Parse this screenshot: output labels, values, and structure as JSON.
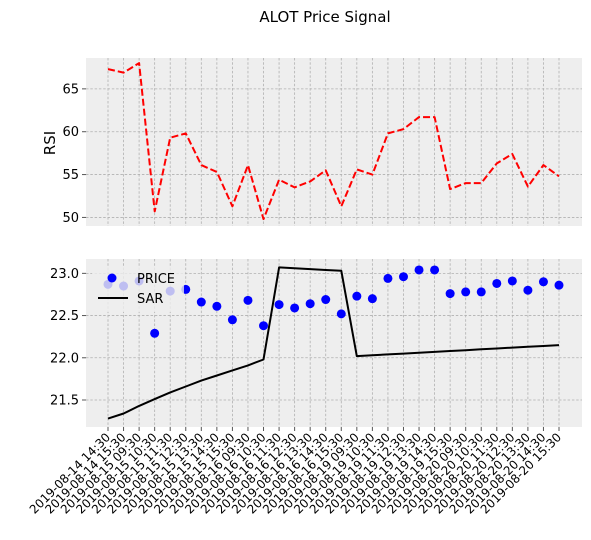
{
  "figure": {
    "title": "ALOT Price Signal"
  },
  "chart_data": [
    {
      "type": "line",
      "title": "",
      "xlabel": "",
      "ylabel": "RSI",
      "ylim": [
        49,
        68.6
      ],
      "yticks": [
        50,
        55,
        60,
        65
      ],
      "grid": true,
      "series": [
        {
          "name": "",
          "style": "dashed",
          "color": "#ff0000",
          "values": [
            67.3,
            66.9,
            68.0,
            50.7,
            59.3,
            59.8,
            56.1,
            55.3,
            51.3,
            56.1,
            49.8,
            54.4,
            53.5,
            54.2,
            55.5,
            51.3,
            55.6,
            55.0,
            59.8,
            60.3,
            61.7,
            61.7,
            53.3,
            54.0,
            54.0,
            56.3,
            57.4,
            53.6,
            56.1,
            54.8
          ]
        }
      ]
    },
    {
      "type": "line",
      "title": "",
      "xlabel": "",
      "ylabel": "",
      "ylim": [
        21.18,
        23.17
      ],
      "yticks": [
        21.5,
        22.0,
        22.5,
        23.0
      ],
      "grid": true,
      "legend_position": "upper-left",
      "categories": [
        "2019-08-14 14:30",
        "2019-08-14 15:30",
        "2019-08-15 09:30",
        "2019-08-15 10:30",
        "2019-08-15 11:30",
        "2019-08-15 12:30",
        "2019-08-15 13:30",
        "2019-08-15 14:30",
        "2019-08-15 15:30",
        "2019-08-16 09:30",
        "2019-08-16 10:30",
        "2019-08-16 11:30",
        "2019-08-16 12:30",
        "2019-08-16 13:30",
        "2019-08-16 14:30",
        "2019-08-16 15:30",
        "2019-08-19 09:30",
        "2019-08-19 10:30",
        "2019-08-19 11:30",
        "2019-08-19 12:30",
        "2019-08-19 13:30",
        "2019-08-19 14:30",
        "2019-08-19 15:30",
        "2019-08-20 09:30",
        "2019-08-20 10:30",
        "2019-08-20 11:30",
        "2019-08-20 12:30",
        "2019-08-20 13:30",
        "2019-08-20 14:30",
        "2019-08-20 15:30"
      ],
      "series": [
        {
          "name": "PRICE",
          "style": "scatter",
          "color": "#0000ff",
          "values": [
            22.87,
            22.85,
            22.91,
            22.29,
            22.79,
            22.81,
            22.66,
            22.61,
            22.45,
            22.68,
            22.38,
            22.63,
            22.59,
            22.64,
            22.69,
            22.52,
            22.73,
            22.7,
            22.94,
            22.96,
            23.04,
            23.04,
            22.76,
            22.78,
            22.78,
            22.88,
            22.91,
            22.8,
            22.9,
            22.86
          ]
        },
        {
          "name": "SAR",
          "style": "solid",
          "color": "#000000",
          "values": [
            21.28,
            21.34,
            21.43,
            21.51,
            21.59,
            21.66,
            21.73,
            21.79,
            21.85,
            21.91,
            21.98,
            23.07,
            23.06,
            23.05,
            23.04,
            23.03,
            22.02,
            22.03,
            22.04,
            22.05,
            22.06,
            22.07,
            22.08,
            22.09,
            22.1,
            22.11,
            22.12,
            22.13,
            22.14,
            22.15
          ]
        }
      ]
    }
  ]
}
